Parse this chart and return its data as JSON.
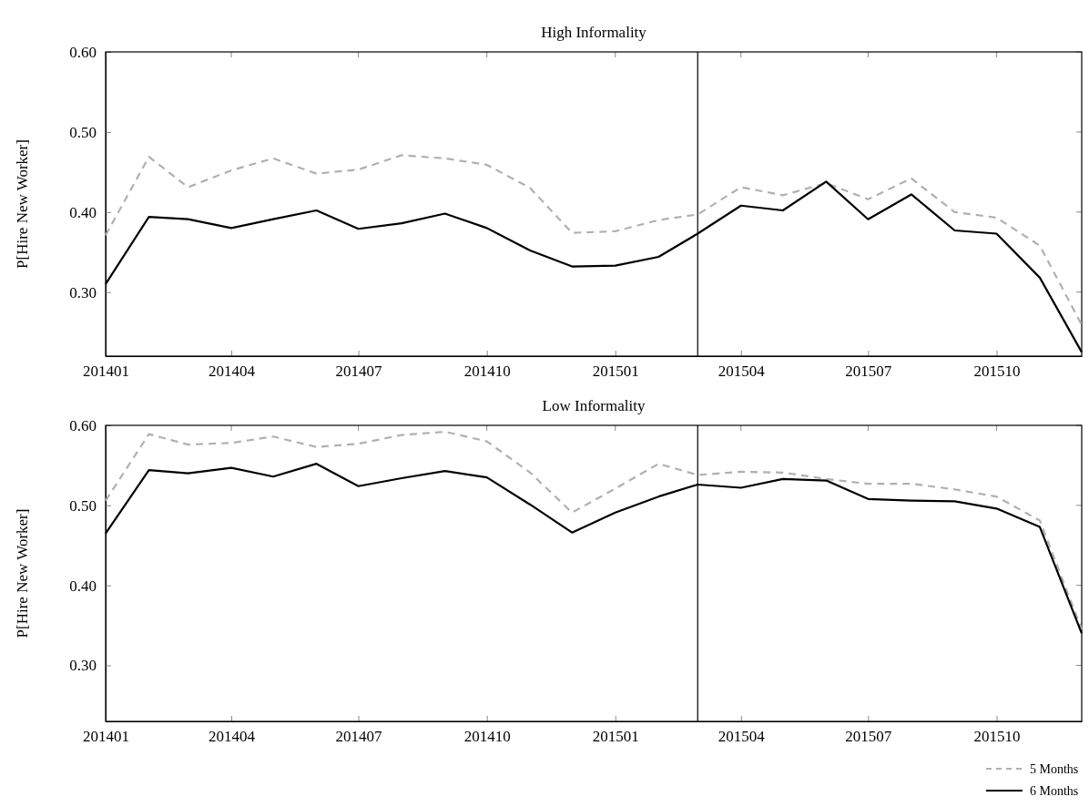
{
  "chart_data": [
    {
      "type": "line",
      "title": "High Informality",
      "ylabel": "P[Hire New Worker]",
      "x": [
        "2014-01",
        "2014-02",
        "2014-03",
        "2014-04",
        "2014-05",
        "2014-06",
        "2014-07",
        "2014-08",
        "2014-09",
        "2014-10",
        "2014-11",
        "2014-12",
        "2015-01",
        "2015-02",
        "2015-03",
        "2015-04",
        "2015-05",
        "2015-06",
        "2015-07",
        "2015-08",
        "2015-09",
        "2015-10",
        "2015-11",
        "2015-12"
      ],
      "xlim": [
        "2014-01",
        "2015-12"
      ],
      "xticks": [
        {
          "value": "2014-01",
          "label": "201401"
        },
        {
          "value": "2014-04",
          "label": "201404"
        },
        {
          "value": "2014-07",
          "label": "201407"
        },
        {
          "value": "2014-10",
          "label": "201410"
        },
        {
          "value": "2015-01",
          "label": "201501"
        },
        {
          "value": "2015-04",
          "label": "201504"
        },
        {
          "value": "2015-07",
          "label": "201507"
        },
        {
          "value": "2015-10",
          "label": "201510"
        }
      ],
      "ylim": [
        0.22,
        0.6
      ],
      "yticks": [
        {
          "value": 0.3,
          "label": "0.30"
        },
        {
          "value": 0.4,
          "label": "0.40"
        },
        {
          "value": 0.5,
          "label": "0.50"
        },
        {
          "value": 0.6,
          "label": "0.60"
        }
      ],
      "grid": false,
      "legend": false,
      "marker": "none",
      "ref_lines": [
        {
          "axis": "x",
          "value": "2015-03",
          "color": "#000000"
        }
      ],
      "series": [
        {
          "color": "#b0b0b0",
          "line_style": "dashed",
          "values": [
            0.371,
            0.469,
            0.431,
            0.452,
            0.467,
            0.448,
            0.453,
            0.471,
            0.467,
            0.459,
            0.43,
            0.374,
            0.376,
            0.39,
            0.397,
            0.431,
            0.421,
            0.436,
            0.416,
            0.442,
            0.4,
            0.393,
            0.358,
            0.259
          ]
        },
        {
          "color": "#000000",
          "line_style": "solid",
          "values": [
            0.31,
            0.394,
            0.391,
            0.38,
            0.391,
            0.402,
            0.379,
            0.386,
            0.398,
            0.38,
            0.352,
            0.332,
            0.333,
            0.344,
            0.373,
            0.408,
            0.402,
            0.438,
            0.391,
            0.422,
            0.377,
            0.373,
            0.318,
            0.225
          ]
        }
      ]
    },
    {
      "type": "line",
      "title": "Low Informality",
      "ylabel": "P[Hire New Worker]",
      "x": [
        "2014-01",
        "2014-02",
        "2014-03",
        "2014-04",
        "2014-05",
        "2014-06",
        "2014-07",
        "2014-08",
        "2014-09",
        "2014-10",
        "2014-11",
        "2014-12",
        "2015-01",
        "2015-02",
        "2015-03",
        "2015-04",
        "2015-05",
        "2015-06",
        "2015-07",
        "2015-08",
        "2015-09",
        "2015-10",
        "2015-11",
        "2015-12"
      ],
      "xlim": [
        "2014-01",
        "2015-12"
      ],
      "xticks": [
        {
          "value": "2014-01",
          "label": "201401"
        },
        {
          "value": "2014-04",
          "label": "201404"
        },
        {
          "value": "2014-07",
          "label": "201407"
        },
        {
          "value": "2014-10",
          "label": "201410"
        },
        {
          "value": "2015-01",
          "label": "201501"
        },
        {
          "value": "2015-04",
          "label": "201504"
        },
        {
          "value": "2015-07",
          "label": "201507"
        },
        {
          "value": "2015-10",
          "label": "201510"
        }
      ],
      "ylim": [
        0.23,
        0.6
      ],
      "yticks": [
        {
          "value": 0.3,
          "label": "0.30"
        },
        {
          "value": 0.4,
          "label": "0.40"
        },
        {
          "value": 0.5,
          "label": "0.50"
        },
        {
          "value": 0.6,
          "label": "0.60"
        }
      ],
      "grid": false,
      "legend": "bottom right",
      "marker": "none",
      "ref_lines": [
        {
          "axis": "x",
          "value": "2015-03",
          "color": "#000000"
        }
      ],
      "series": [
        {
          "name": "5 Months",
          "color": "#b0b0b0",
          "line_style": "dashed",
          "values": [
            0.506,
            0.589,
            0.576,
            0.578,
            0.586,
            0.573,
            0.577,
            0.588,
            0.592,
            0.58,
            0.541,
            0.491,
            0.521,
            0.552,
            0.538,
            0.542,
            0.541,
            0.533,
            0.527,
            0.527,
            0.52,
            0.511,
            0.481,
            0.345
          ]
        },
        {
          "name": "6 Months",
          "color": "#000000",
          "line_style": "solid",
          "values": [
            0.465,
            0.544,
            0.54,
            0.547,
            0.536,
            0.552,
            0.524,
            0.534,
            0.543,
            0.535,
            0.501,
            0.466,
            0.491,
            0.511,
            0.526,
            0.522,
            0.533,
            0.531,
            0.508,
            0.506,
            0.505,
            0.496,
            0.473,
            0.34
          ]
        }
      ]
    }
  ]
}
